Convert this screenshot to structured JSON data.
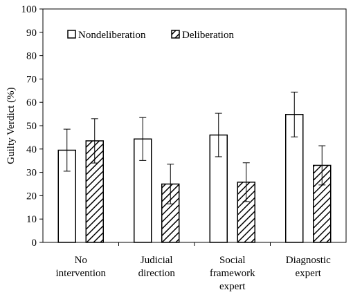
{
  "chart_data": {
    "type": "bar",
    "ylabel": "Guilty Verdict (%)",
    "ylim": [
      0,
      100
    ],
    "yticks": [
      0,
      10,
      20,
      30,
      40,
      50,
      60,
      70,
      80,
      90,
      100
    ],
    "grid": false,
    "legend_position": "top-left",
    "categories": [
      [
        "No",
        "intervention"
      ],
      [
        "Judicial",
        "direction"
      ],
      [
        "Social",
        "framework",
        "expert"
      ],
      [
        "Diagnostic",
        "expert"
      ]
    ],
    "series": [
      {
        "name": "Nondeliberation",
        "fill": "white",
        "values": [
          39.5,
          44.3,
          46.0,
          54.8
        ],
        "errors": [
          9.0,
          9.2,
          9.3,
          9.6
        ]
      },
      {
        "name": "Deliberation",
        "fill": "hatched",
        "values": [
          43.5,
          25.0,
          25.8,
          33.0
        ],
        "errors": [
          9.5,
          8.5,
          8.3,
          8.4
        ]
      }
    ]
  }
}
